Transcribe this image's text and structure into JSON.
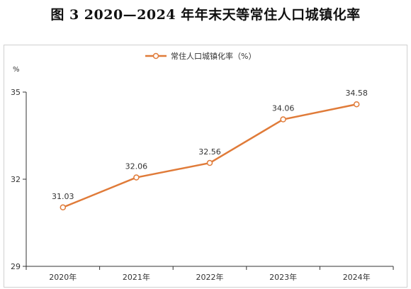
{
  "figure": {
    "title": "图 3  2020—2024 年年末天等常住人口城镇化率"
  },
  "chart_data": {
    "type": "line",
    "title": "图 3  2020—2024 年年末天等常住人口城镇化率",
    "ylabel": "%",
    "xlabel": "",
    "categories": [
      "2020年",
      "2021年",
      "2022年",
      "2023年",
      "2024年"
    ],
    "series": [
      {
        "name": "常住人口城镇化率（%）",
        "values": [
          31.03,
          32.06,
          32.56,
          34.06,
          34.58
        ],
        "color": "#E07B39"
      }
    ],
    "ylim": [
      29,
      35
    ],
    "yticks": [
      "29",
      "32",
      "35"
    ],
    "data_labels": [
      "31.03",
      "32.06",
      "32.56",
      "34.06",
      "34.58"
    ],
    "grid": false,
    "legend": "top-center"
  }
}
